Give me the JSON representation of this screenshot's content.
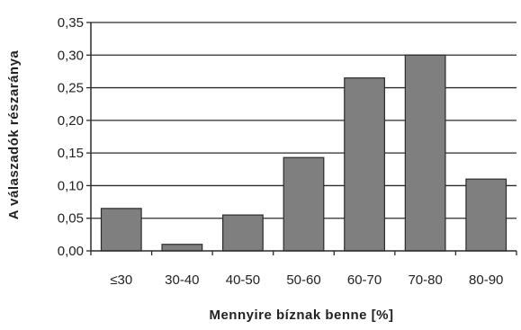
{
  "chart_data": {
    "type": "bar",
    "title": "",
    "xlabel": "Mennyire bíznak benne [%]",
    "ylabel": "A válaszadók részaránya",
    "categories": [
      "≤30",
      "30-40",
      "40-50",
      "50-60",
      "60-70",
      "70-80",
      "80-90"
    ],
    "series": [
      {
        "values": [
          0.065,
          0.01,
          0.055,
          0.143,
          0.265,
          0.3,
          0.11
        ]
      }
    ],
    "ylim": [
      0,
      0.35
    ],
    "yticks": [
      "0,00",
      "0,05",
      "0,10",
      "0,15",
      "0,20",
      "0,25",
      "0,30",
      "0,35"
    ],
    "grid": true,
    "legend": "none",
    "colors": {
      "bar": "#7f7f7f",
      "bar_stroke": "#2b2b2b",
      "grid": "#2b2b2b",
      "axis": "#2b2b2b"
    }
  }
}
